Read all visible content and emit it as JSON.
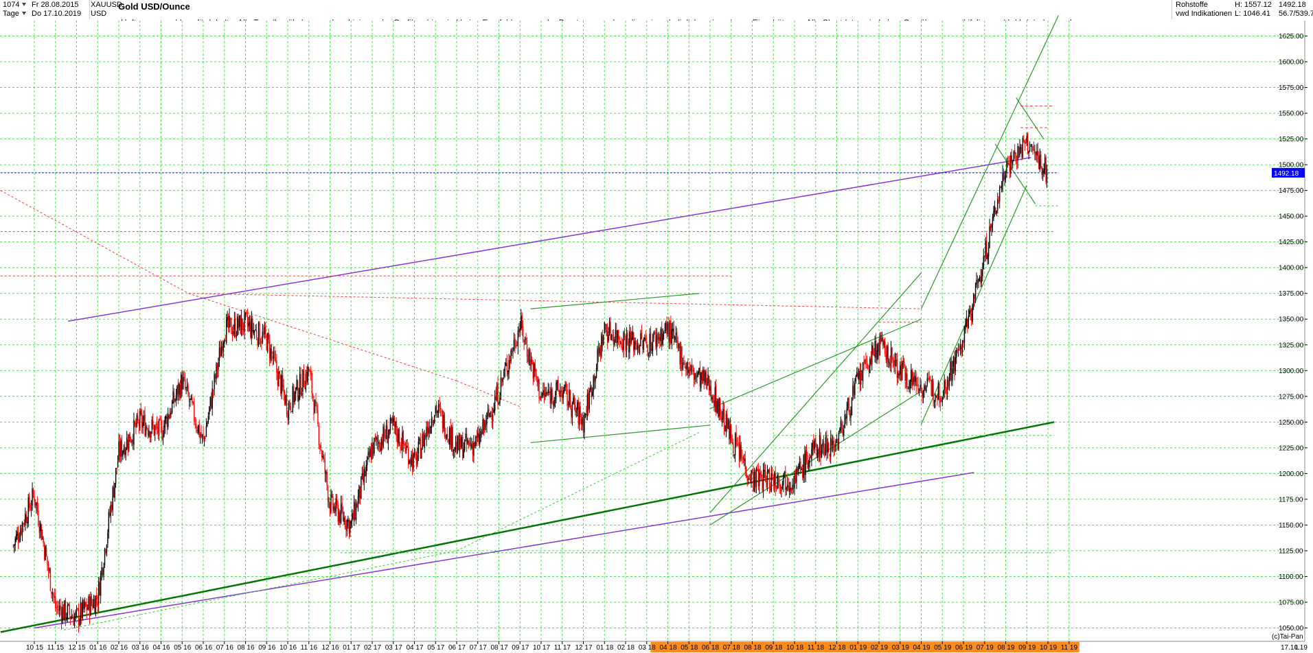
{
  "header": {
    "symbol_id": "1074",
    "period": "Tage",
    "from_date": "Fr 28.08.2015",
    "to_date": "Do 17.10.2019",
    "ticker": "XAUUSD",
    "currency": "USD",
    "title": "Gold USD/Ounce",
    "category": "Rohstoffe",
    "source": "vwd Indikationen",
    "high": "H: 1557.12",
    "low": "L: 1046.41",
    "last": "1492.18",
    "ratio": "56.7/539.7"
  },
  "disclaimer": "Haftungsausschluss für Inhalte: Alle Trendkanäle bzw. andere Linien, oder Grafiken hier sind keine Empfehlungen, oder Beratung, sondern die zeigen lediglich meine eigene Einschätzung. Alle Chartdaten sind ohne Gewähr.  www.wikifolio.com/de/de/p/cyberwaehrungen",
  "footer": {
    "copyright": "(c)Tai-Pan",
    "scale_mode": "L",
    "last_date": "17.10.19"
  },
  "colors": {
    "up": "#000000",
    "down": "#ff0000",
    "grid": "#33cc33",
    "channel_green": "#2a9a2a",
    "trend_dark_green": "#007700",
    "trend_purple": "#8833dd",
    "price_line_blue": "#0000ff",
    "resistance_red": "#ff3333",
    "axis_highlight": "#ff8c1a"
  },
  "chart_data": {
    "type": "candlestick",
    "title": "Gold USD/Ounce",
    "y_axis": {
      "min": 1037,
      "max": 1640,
      "ticks": [
        1050,
        1075,
        1100,
        1125,
        1150,
        1175,
        1200,
        1225,
        1250,
        1275,
        1300,
        1325,
        1350,
        1375,
        1400,
        1425,
        1450,
        1475,
        1500,
        1525,
        1550,
        1575,
        1600,
        1625
      ],
      "current_value_label": "1492.18"
    },
    "x_axis": {
      "labels": [
        "10 15",
        "11 15",
        "12 15",
        "01 16",
        "02 16",
        "03 16",
        "04 16",
        "05 16",
        "06 16",
        "07 16",
        "08 16",
        "09 16",
        "10 16",
        "11 16",
        "12 16",
        "01 17",
        "02 17",
        "03 17",
        "04 17",
        "05 17",
        "06 17",
        "07 17",
        "08 17",
        "09 17",
        "10 17",
        "11 17",
        "12 17",
        "01 18",
        "02 18",
        "03 18",
        "04 18",
        "05 18",
        "06 18",
        "07 18",
        "08 18",
        "09 18",
        "10 18",
        "11 18",
        "12 18",
        "01 19",
        "02 19",
        "03 19",
        "04 19",
        "05 19",
        "06 19",
        "07 19",
        "08 19",
        "09 19",
        "10 19",
        "11 19"
      ],
      "highlighted_from": "04 18"
    },
    "price_path": [
      {
        "date": "2015-09",
        "close": 1130
      },
      {
        "date": "2015-10",
        "close": 1180
      },
      {
        "date": "2015-11",
        "close": 1070
      },
      {
        "date": "2015-12",
        "close": 1060
      },
      {
        "date": "2016-01",
        "close": 1080
      },
      {
        "date": "2016-02",
        "close": 1220
      },
      {
        "date": "2016-03",
        "close": 1250
      },
      {
        "date": "2016-04",
        "close": 1240
      },
      {
        "date": "2016-05",
        "close": 1290
      },
      {
        "date": "2016-06",
        "close": 1230
      },
      {
        "date": "2016-07",
        "close": 1340
      },
      {
        "date": "2016-08",
        "close": 1345
      },
      {
        "date": "2016-09",
        "close": 1330
      },
      {
        "date": "2016-10",
        "close": 1265
      },
      {
        "date": "2016-11",
        "close": 1300
      },
      {
        "date": "2016-12",
        "close": 1170
      },
      {
        "date": "2017-01",
        "close": 1150
      },
      {
        "date": "2017-02",
        "close": 1225
      },
      {
        "date": "2017-03",
        "close": 1245
      },
      {
        "date": "2017-04",
        "close": 1210
      },
      {
        "date": "2017-05",
        "close": 1265
      },
      {
        "date": "2017-06",
        "close": 1225
      },
      {
        "date": "2017-07",
        "close": 1230
      },
      {
        "date": "2017-08",
        "close": 1280
      },
      {
        "date": "2017-09",
        "close": 1345
      },
      {
        "date": "2017-10",
        "close": 1275
      },
      {
        "date": "2017-11",
        "close": 1280
      },
      {
        "date": "2017-12",
        "close": 1250
      },
      {
        "date": "2018-01",
        "close": 1340
      },
      {
        "date": "2018-02",
        "close": 1330
      },
      {
        "date": "2018-03",
        "close": 1325
      },
      {
        "date": "2018-04",
        "close": 1340
      },
      {
        "date": "2018-05",
        "close": 1300
      },
      {
        "date": "2018-06",
        "close": 1285
      },
      {
        "date": "2018-07",
        "close": 1235
      },
      {
        "date": "2018-08",
        "close": 1195
      },
      {
        "date": "2018-09",
        "close": 1195
      },
      {
        "date": "2018-10",
        "close": 1195
      },
      {
        "date": "2018-11",
        "close": 1225
      },
      {
        "date": "2018-12",
        "close": 1230
      },
      {
        "date": "2019-01",
        "close": 1290
      },
      {
        "date": "2019-02",
        "close": 1325
      },
      {
        "date": "2019-03",
        "close": 1300
      },
      {
        "date": "2019-04",
        "close": 1285
      },
      {
        "date": "2019-05",
        "close": 1280
      },
      {
        "date": "2019-06",
        "close": 1330
      },
      {
        "date": "2019-07",
        "close": 1410
      },
      {
        "date": "2019-08",
        "close": 1500
      },
      {
        "date": "2019-09",
        "close": 1520
      },
      {
        "date": "2019-10",
        "close": 1492.18
      }
    ],
    "key_levels": {
      "recent_high": 1557.12,
      "period_low": 1046.41,
      "last": 1492.18
    }
  }
}
